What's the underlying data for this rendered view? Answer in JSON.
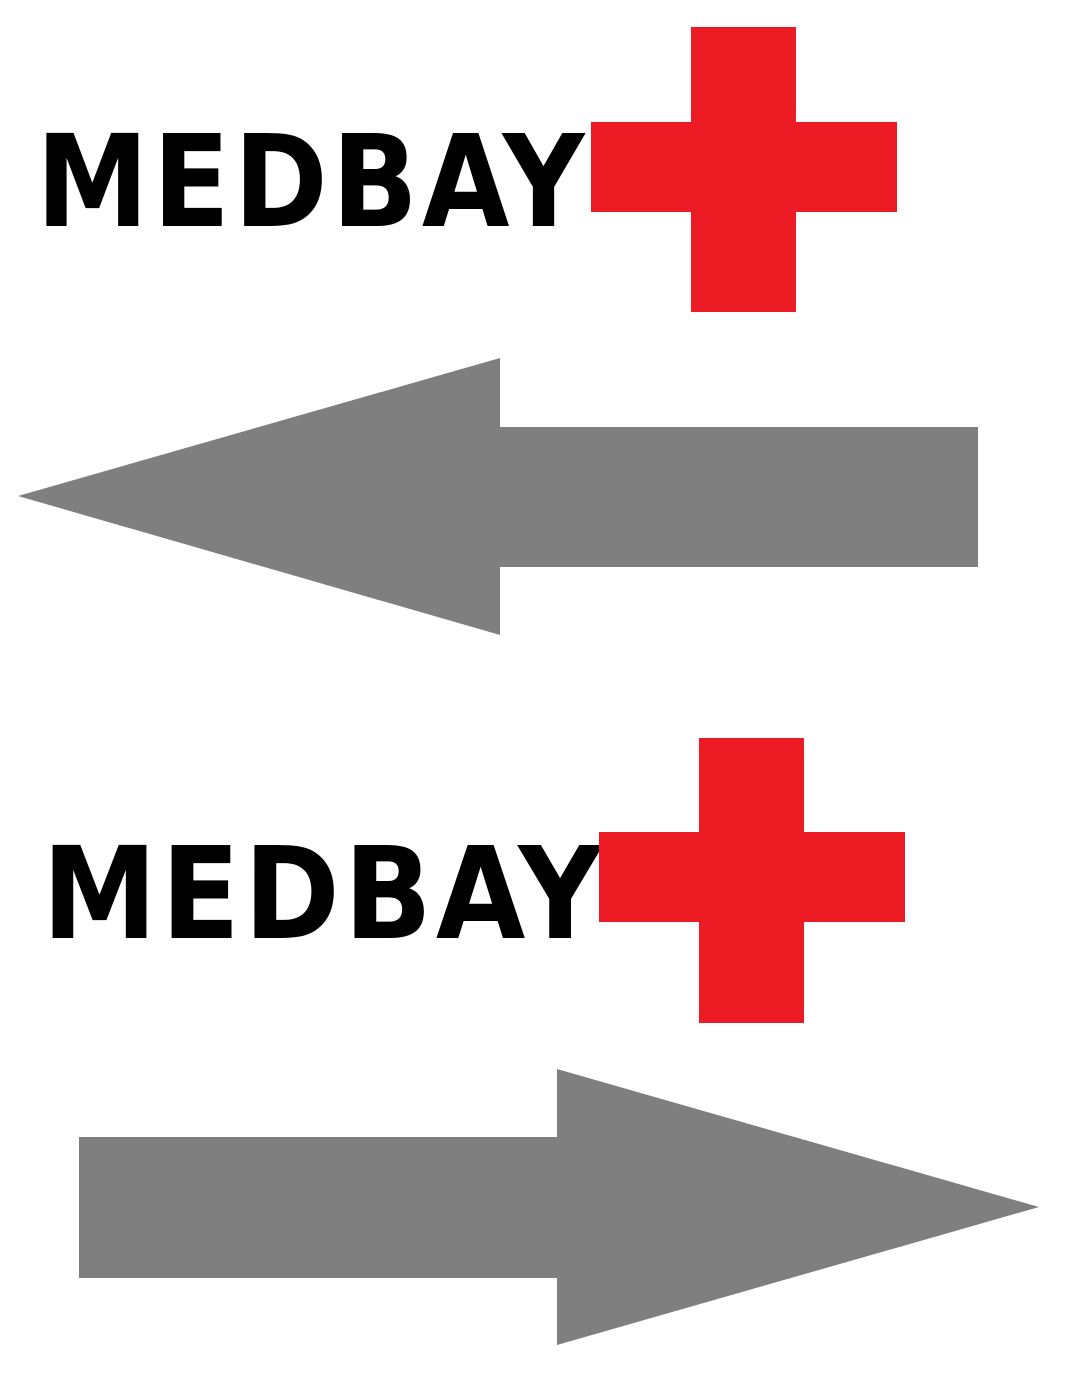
{
  "signs": [
    {
      "label": "MEDBAY",
      "arrow_direction": "left"
    },
    {
      "label": "MEDBAY",
      "arrow_direction": "right"
    }
  ],
  "icons": {
    "cross": "medical-cross-icon",
    "arrow_left": "arrow-left-icon",
    "arrow_right": "arrow-right-icon"
  },
  "colors": {
    "text": "#000000",
    "cross": "#ed1c24",
    "arrow": "#7f7f7f",
    "background": "#ffffff"
  }
}
